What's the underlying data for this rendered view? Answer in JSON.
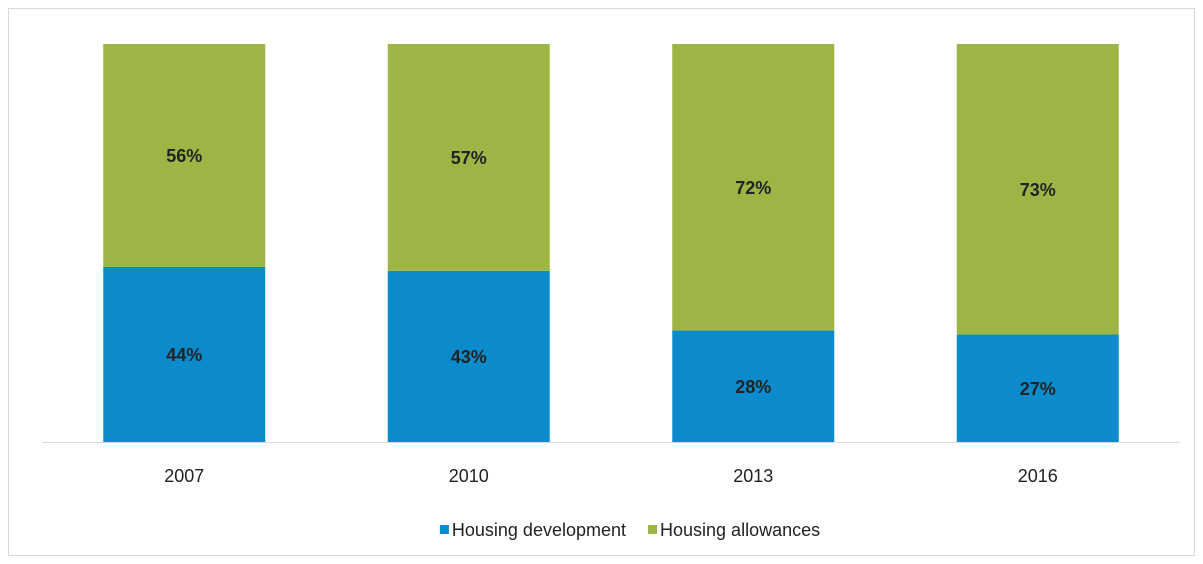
{
  "chart_data": {
    "type": "bar",
    "stacked": true,
    "categories": [
      "2007",
      "2010",
      "2013",
      "2016"
    ],
    "series": [
      {
        "name": "Housing development",
        "color": "#0b8bcb",
        "values": [
          44,
          43,
          28,
          27
        ],
        "value_labels": [
          "44%",
          "43%",
          "28%",
          "27%"
        ]
      },
      {
        "name": "Housing allowances",
        "color": "#9cb544",
        "values": [
          56,
          57,
          72,
          73
        ],
        "value_labels": [
          "56%",
          "57%",
          "72%",
          "73%"
        ]
      }
    ],
    "legend": "bottom"
  }
}
